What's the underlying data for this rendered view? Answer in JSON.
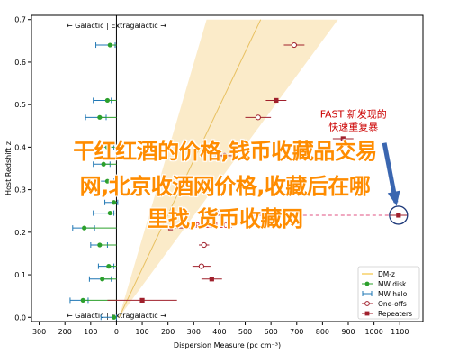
{
  "chart_data": {
    "type": "scatter",
    "xlabel": "Dispersion Measure (pc cm⁻³)",
    "ylabel": "Host Redshift z",
    "xlim": [
      -330,
      1190
    ],
    "ylim": [
      -0.01,
      0.71
    ],
    "xticks": [
      -300,
      -200,
      -100,
      0,
      100,
      200,
      300,
      400,
      500,
      600,
      700,
      800,
      900,
      1000,
      1100
    ],
    "xtick_labels": [
      "300",
      "200",
      "100",
      "0",
      "100",
      "200",
      "300",
      "400",
      "500",
      "600",
      "700",
      "800",
      "900",
      "1000",
      "1100"
    ],
    "yticks": [
      0.0,
      0.1,
      0.2,
      0.3,
      0.4,
      0.5,
      0.6,
      0.7
    ],
    "ytick_labels": [
      "0.0",
      "0.1",
      "0.2",
      "0.3",
      "0.4",
      "0.5",
      "0.6",
      "0.7"
    ],
    "top_label": "← Galactic | Extragalactic →",
    "bottom_label": "← Galactic | Extragalactic →",
    "legend_position": "lower-right",
    "legend": [
      {
        "label": "DM-z",
        "kind": "band",
        "color": "#f5c542"
      },
      {
        "label": "MW disk",
        "kind": "dot",
        "color": "#2ca02c"
      },
      {
        "label": "MW halo",
        "kind": "errbar",
        "color": "#1f77b4"
      },
      {
        "label": "One-offs",
        "kind": "hollow",
        "color": "#a0202c"
      },
      {
        "label": "Repeaters",
        "kind": "square",
        "color": "#a0202c"
      }
    ],
    "dmz_band": {
      "start": [
        10,
        0.0
      ],
      "center_end": [
        560,
        0.7
      ],
      "low_end": [
        860,
        0.7
      ],
      "high_end": [
        350,
        0.7
      ]
    },
    "mw_disk": [
      {
        "x": -25,
        "y": 0.64
      },
      {
        "x": -35,
        "y": 0.51
      },
      {
        "x": -65,
        "y": 0.47
      },
      {
        "x": -35,
        "y": 0.4
      },
      {
        "x": -50,
        "y": 0.36
      },
      {
        "x": -35,
        "y": 0.32
      },
      {
        "x": -10,
        "y": 0.27
      },
      {
        "x": -25,
        "y": 0.245
      },
      {
        "x": -125,
        "y": 0.21
      },
      {
        "x": -65,
        "y": 0.17
      },
      {
        "x": -30,
        "y": 0.12
      },
      {
        "x": -55,
        "y": 0.09
      },
      {
        "x": -130,
        "y": 0.04
      },
      {
        "x": -10,
        "y": 0.0
      }
    ],
    "mw_halo": [
      {
        "y": 0.64,
        "xmin": -80,
        "xmax": -5
      },
      {
        "y": 0.51,
        "xmin": -90,
        "xmax": -20
      },
      {
        "y": 0.47,
        "xmin": -120,
        "xmax": -40
      },
      {
        "y": 0.4,
        "xmin": -80,
        "xmax": -10
      },
      {
        "y": 0.36,
        "xmin": -90,
        "xmax": -25
      },
      {
        "y": 0.32,
        "xmin": -75,
        "xmax": -10
      },
      {
        "y": 0.27,
        "xmin": -45,
        "xmax": 5
      },
      {
        "y": 0.245,
        "xmin": -90,
        "xmax": -10
      },
      {
        "y": 0.21,
        "xmin": -170,
        "xmax": -85
      },
      {
        "y": 0.17,
        "xmin": -100,
        "xmax": -35
      },
      {
        "y": 0.12,
        "xmin": -70,
        "xmax": -10
      },
      {
        "y": 0.09,
        "xmin": -105,
        "xmax": -20
      },
      {
        "y": 0.04,
        "xmin": -180,
        "xmax": -110
      },
      {
        "y": 0.0,
        "xmin": -60,
        "xmax": 0
      }
    ],
    "one_offs": [
      {
        "x": 690,
        "y": 0.64,
        "xerr": 40
      },
      {
        "x": 550,
        "y": 0.47,
        "xerr": 50
      },
      {
        "x": 420,
        "y": 0.38,
        "xerr": 35
      },
      {
        "x": 395,
        "y": 0.245,
        "xerr": 30
      },
      {
        "x": 340,
        "y": 0.17,
        "xerr": 20
      },
      {
        "x": 330,
        "y": 0.12,
        "xerr": 35
      }
    ],
    "repeaters": [
      {
        "x": 620,
        "y": 0.51,
        "xerr": 40
      },
      {
        "x": 880,
        "y": 0.42,
        "xerr": 40
      },
      {
        "x": 210,
        "y": 0.21,
        "xerr": 80
      },
      {
        "x": 370,
        "y": 0.09,
        "xerr": 40
      },
      {
        "x": 100,
        "y": 0.04,
        "xerr": 135
      },
      {
        "x": 1095,
        "y": 0.24,
        "xerr": 35
      }
    ],
    "annotations": [
      {
        "text": "FAST 新发现的",
        "x": 920,
        "y": 0.47,
        "color": "#cc0000"
      },
      {
        "text": "快速重复暴",
        "x": 920,
        "y": 0.44,
        "color": "#cc0000"
      },
      {
        "text": "FRB121102",
        "x": 290,
        "y": 0.21,
        "color": "#cc0000"
      },
      {
        "text": "repeaters",
        "x": 510,
        "y": 0.24,
        "color": "#cc0000"
      }
    ],
    "highlight": {
      "x": 1095,
      "y": 0.24
    },
    "arrow": {
      "from": [
        1040,
        0.41
      ],
      "to": [
        1085,
        0.27
      ]
    },
    "dashed_line": {
      "x1": 480,
      "x2": 1095,
      "y": 0.24
    }
  },
  "overlay": {
    "line1": "干红红酒的价格,钱币收藏品交易",
    "line2": "网,北京收酒网价格,收藏后在哪",
    "line3": "里找,货币收藏网"
  }
}
